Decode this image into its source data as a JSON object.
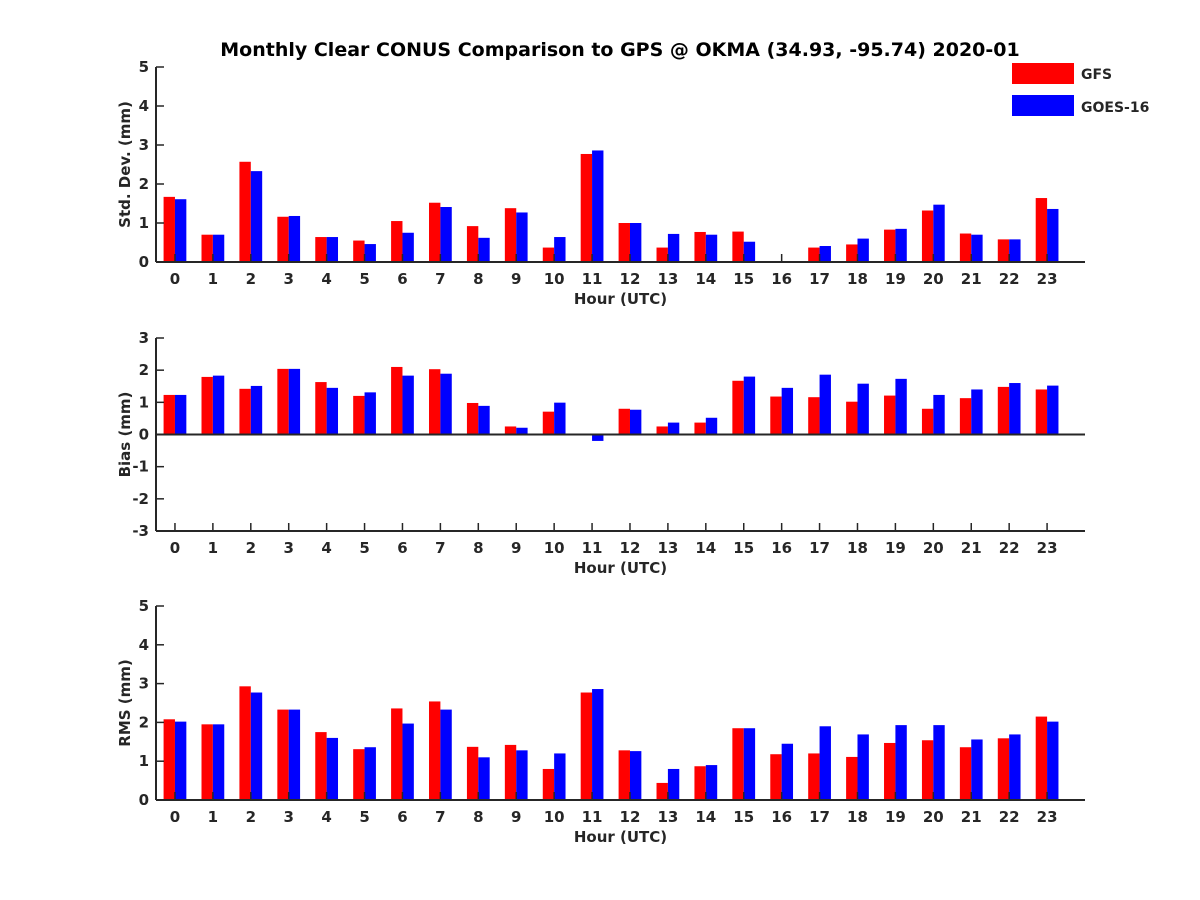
{
  "title": "Monthly Clear CONUS Comparison to GPS @ OKMA (34.93, -95.74) 2020-01",
  "legend": {
    "placement": "top-right",
    "entries": [
      {
        "name": "GFS",
        "color": "#ff0000"
      },
      {
        "name": "GOES-16",
        "color": "#0000ff"
      }
    ]
  },
  "chart_data": [
    {
      "type": "bar",
      "xlabel": "Hour (UTC)",
      "ylabel": "Std. Dev. (mm)",
      "ylim": [
        0,
        5
      ],
      "yticks": [
        0,
        1,
        2,
        3,
        4,
        5
      ],
      "categories": [
        "0",
        "1",
        "2",
        "3",
        "4",
        "5",
        "6",
        "7",
        "8",
        "9",
        "10",
        "11",
        "12",
        "13",
        "14",
        "15",
        "16",
        "17",
        "18",
        "19",
        "20",
        "21",
        "22",
        "23"
      ],
      "series": [
        {
          "name": "GFS",
          "color": "#ff0000",
          "values": [
            1.67,
            0.7,
            2.57,
            1.16,
            0.64,
            0.55,
            1.05,
            1.52,
            0.92,
            1.38,
            0.37,
            2.77,
            1.0,
            0.37,
            0.77,
            0.78,
            null,
            0.37,
            0.45,
            0.83,
            1.32,
            0.73,
            0.58,
            1.64
          ]
        },
        {
          "name": "GOES-16",
          "color": "#0000ff",
          "values": [
            1.61,
            0.7,
            2.33,
            1.18,
            0.64,
            0.46,
            0.75,
            1.41,
            0.62,
            1.27,
            0.64,
            2.86,
            1.0,
            0.72,
            0.7,
            0.52,
            null,
            0.41,
            0.6,
            0.85,
            1.47,
            0.7,
            0.58,
            1.36
          ]
        }
      ]
    },
    {
      "type": "bar",
      "xlabel": "Hour (UTC)",
      "ylabel": "Bias (mm)",
      "ylim": [
        -3,
        3
      ],
      "yticks": [
        -3,
        -2,
        -1,
        0,
        1,
        2,
        3
      ],
      "categories": [
        "0",
        "1",
        "2",
        "3",
        "4",
        "5",
        "6",
        "7",
        "8",
        "9",
        "10",
        "11",
        "12",
        "13",
        "14",
        "15",
        "16",
        "17",
        "18",
        "19",
        "20",
        "21",
        "22",
        "23"
      ],
      "series": [
        {
          "name": "GFS",
          "color": "#ff0000",
          "values": [
            1.23,
            1.79,
            1.42,
            2.04,
            1.63,
            1.2,
            2.1,
            2.03,
            0.98,
            0.25,
            0.71,
            0.0,
            0.8,
            0.25,
            0.37,
            1.67,
            1.18,
            1.16,
            1.02,
            1.21,
            0.8,
            1.13,
            1.48,
            1.4
          ]
        },
        {
          "name": "GOES-16",
          "color": "#0000ff",
          "values": [
            1.23,
            1.83,
            1.51,
            2.04,
            1.45,
            1.31,
            1.83,
            1.89,
            0.89,
            0.21,
            0.99,
            -0.2,
            0.77,
            0.37,
            0.52,
            1.8,
            1.45,
            1.86,
            1.58,
            1.73,
            1.23,
            1.4,
            1.6,
            1.52
          ]
        }
      ]
    },
    {
      "type": "bar",
      "xlabel": "Hour (UTC)",
      "ylabel": "RMS (mm)",
      "ylim": [
        0,
        5
      ],
      "yticks": [
        0,
        1,
        2,
        3,
        4,
        5
      ],
      "categories": [
        "0",
        "1",
        "2",
        "3",
        "4",
        "5",
        "6",
        "7",
        "8",
        "9",
        "10",
        "11",
        "12",
        "13",
        "14",
        "15",
        "16",
        "17",
        "18",
        "19",
        "20",
        "21",
        "22",
        "23"
      ],
      "series": [
        {
          "name": "GFS",
          "color": "#ff0000",
          "values": [
            2.08,
            1.95,
            2.93,
            2.33,
            1.75,
            1.31,
            2.36,
            2.54,
            1.37,
            1.42,
            0.8,
            2.77,
            1.28,
            0.44,
            0.87,
            1.85,
            1.18,
            1.2,
            1.11,
            1.47,
            1.54,
            1.36,
            1.59,
            2.15
          ]
        },
        {
          "name": "GOES-16",
          "color": "#0000ff",
          "values": [
            2.02,
            1.95,
            2.77,
            2.33,
            1.6,
            1.36,
            1.97,
            2.33,
            1.1,
            1.28,
            1.2,
            2.86,
            1.26,
            0.8,
            0.9,
            1.85,
            1.45,
            1.9,
            1.69,
            1.93,
            1.93,
            1.56,
            1.69,
            2.02
          ]
        }
      ]
    }
  ]
}
